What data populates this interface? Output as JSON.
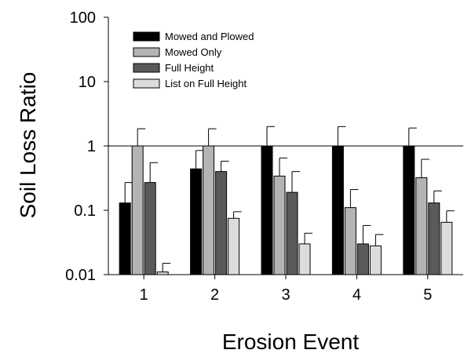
{
  "chart_data": {
    "type": "bar",
    "title": "",
    "xlabel": "Erosion Event",
    "ylabel": "Soil Loss Ratio",
    "y_scale": "log",
    "ylim": [
      0.01,
      100
    ],
    "y_ticks": [
      "0.01",
      "0.1",
      "1",
      "10",
      "100"
    ],
    "reference_line": 1,
    "categories": [
      "1",
      "2",
      "3",
      "4",
      "5"
    ],
    "legend_position": "top-left",
    "series": [
      {
        "name": "Mowed and Plowed",
        "color": "#000000",
        "values": [
          0.13,
          0.44,
          1.0,
          1.0,
          1.0
        ],
        "error_upper": [
          0.27,
          0.85,
          2.0,
          2.0,
          1.9
        ]
      },
      {
        "name": "Mowed Only",
        "color": "#b4b4b4",
        "values": [
          1.0,
          1.0,
          0.34,
          0.11,
          0.32
        ],
        "error_upper": [
          1.85,
          1.85,
          0.65,
          0.21,
          0.62
        ]
      },
      {
        "name": "Full Height",
        "color": "#5a5a5a",
        "values": [
          0.27,
          0.4,
          0.19,
          0.03,
          0.13
        ],
        "error_upper": [
          0.55,
          0.58,
          0.4,
          0.058,
          0.2
        ]
      },
      {
        "name": "List on Full Height",
        "color": "#dcdcdc",
        "values": [
          0.011,
          0.075,
          0.03,
          0.028,
          0.065
        ],
        "error_upper": [
          0.015,
          0.095,
          0.044,
          0.042,
          0.098
        ]
      }
    ]
  }
}
